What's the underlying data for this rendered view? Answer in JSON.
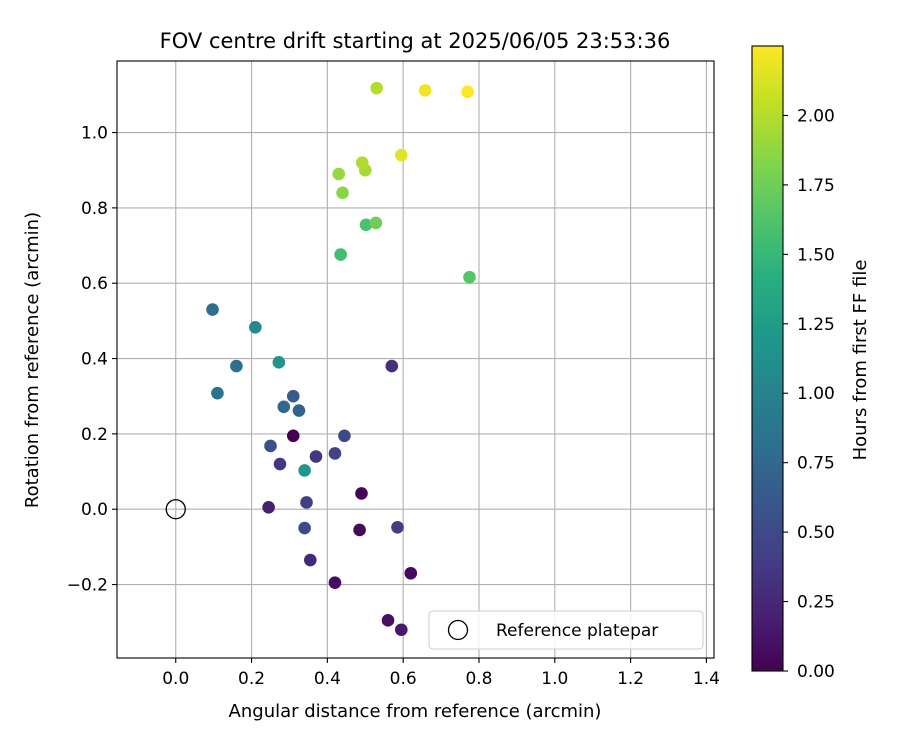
{
  "chart_data": {
    "type": "scatter",
    "title": "FOV centre drift starting at 2025/06/05 23:53:36",
    "xlabel": "Angular distance from reference (arcmin)",
    "ylabel": "Rotation from reference (arcmin)",
    "xlim": [
      -0.155,
      1.42
    ],
    "ylim": [
      -0.395,
      1.19
    ],
    "xticks": [
      0.0,
      0.2,
      0.4,
      0.6,
      0.8,
      1.0,
      1.2,
      1.4
    ],
    "xtick_labels": [
      "0.0",
      "0.2",
      "0.4",
      "0.6",
      "0.8",
      "1.0",
      "1.2",
      "1.4"
    ],
    "yticks": [
      -0.2,
      0.0,
      0.2,
      0.4,
      0.6,
      0.8,
      1.0
    ],
    "ytick_labels": [
      "−0.2",
      "0.0",
      "0.2",
      "0.4",
      "0.6",
      "0.8",
      "1.0"
    ],
    "grid": true,
    "legend": {
      "placement": "lower-right",
      "entries": [
        {
          "label": "Reference platepar",
          "marker": "open-circle"
        }
      ]
    },
    "reference_point": {
      "x": 0.0,
      "y": 0.0
    },
    "colorbar": {
      "label": "Hours from first FF file",
      "colormap": "viridis",
      "range": [
        0.0,
        2.25
      ],
      "ticks": [
        0.0,
        0.25,
        0.5,
        0.75,
        1.0,
        1.25,
        1.5,
        1.75,
        2.0
      ],
      "tick_labels": [
        "0.00",
        "0.25",
        "0.50",
        "0.75",
        "1.00",
        "1.25",
        "1.50",
        "1.75",
        "2.00"
      ]
    },
    "points": [
      {
        "x": 0.31,
        "y": 0.195,
        "hours": 0.0
      },
      {
        "x": 0.49,
        "y": 0.042,
        "hours": 0.03
      },
      {
        "x": 0.485,
        "y": -0.055,
        "hours": 0.05
      },
      {
        "x": 0.42,
        "y": -0.195,
        "hours": 0.07
      },
      {
        "x": 0.62,
        "y": -0.17,
        "hours": 0.06
      },
      {
        "x": 0.56,
        "y": -0.295,
        "hours": 0.1
      },
      {
        "x": 0.595,
        "y": -0.32,
        "hours": 0.15
      },
      {
        "x": 0.245,
        "y": 0.005,
        "hours": 0.2
      },
      {
        "x": 0.355,
        "y": -0.135,
        "hours": 0.25
      },
      {
        "x": 0.57,
        "y": 0.38,
        "hours": 0.3
      },
      {
        "x": 0.275,
        "y": 0.12,
        "hours": 0.35
      },
      {
        "x": 0.37,
        "y": 0.14,
        "hours": 0.35
      },
      {
        "x": 0.345,
        "y": 0.018,
        "hours": 0.4
      },
      {
        "x": 0.585,
        "y": -0.048,
        "hours": 0.4
      },
      {
        "x": 0.42,
        "y": 0.148,
        "hours": 0.45
      },
      {
        "x": 0.34,
        "y": -0.05,
        "hours": 0.5
      },
      {
        "x": 0.445,
        "y": 0.195,
        "hours": 0.5
      },
      {
        "x": 0.25,
        "y": 0.168,
        "hours": 0.55
      },
      {
        "x": 0.31,
        "y": 0.3,
        "hours": 0.65
      },
      {
        "x": 0.325,
        "y": 0.262,
        "hours": 0.7
      },
      {
        "x": 0.285,
        "y": 0.272,
        "hours": 0.75
      },
      {
        "x": 0.16,
        "y": 0.38,
        "hours": 0.8
      },
      {
        "x": 0.11,
        "y": 0.308,
        "hours": 0.85
      },
      {
        "x": 0.097,
        "y": 0.53,
        "hours": 0.8
      },
      {
        "x": 0.21,
        "y": 0.483,
        "hours": 1.05
      },
      {
        "x": 0.272,
        "y": 0.39,
        "hours": 1.15
      },
      {
        "x": 0.34,
        "y": 0.103,
        "hours": 1.2
      },
      {
        "x": 0.435,
        "y": 0.676,
        "hours": 1.55
      },
      {
        "x": 0.502,
        "y": 0.755,
        "hours": 1.6
      },
      {
        "x": 0.775,
        "y": 0.616,
        "hours": 1.65
      },
      {
        "x": 0.528,
        "y": 0.76,
        "hours": 1.75
      },
      {
        "x": 0.44,
        "y": 0.84,
        "hours": 1.85
      },
      {
        "x": 0.43,
        "y": 0.89,
        "hours": 1.9
      },
      {
        "x": 0.5,
        "y": 0.9,
        "hours": 1.95
      },
      {
        "x": 0.492,
        "y": 0.92,
        "hours": 1.98
      },
      {
        "x": 0.53,
        "y": 1.118,
        "hours": 2.0
      },
      {
        "x": 0.595,
        "y": 0.94,
        "hours": 2.15
      },
      {
        "x": 0.658,
        "y": 1.112,
        "hours": 2.2
      },
      {
        "x": 0.77,
        "y": 1.108,
        "hours": 2.25
      }
    ]
  }
}
